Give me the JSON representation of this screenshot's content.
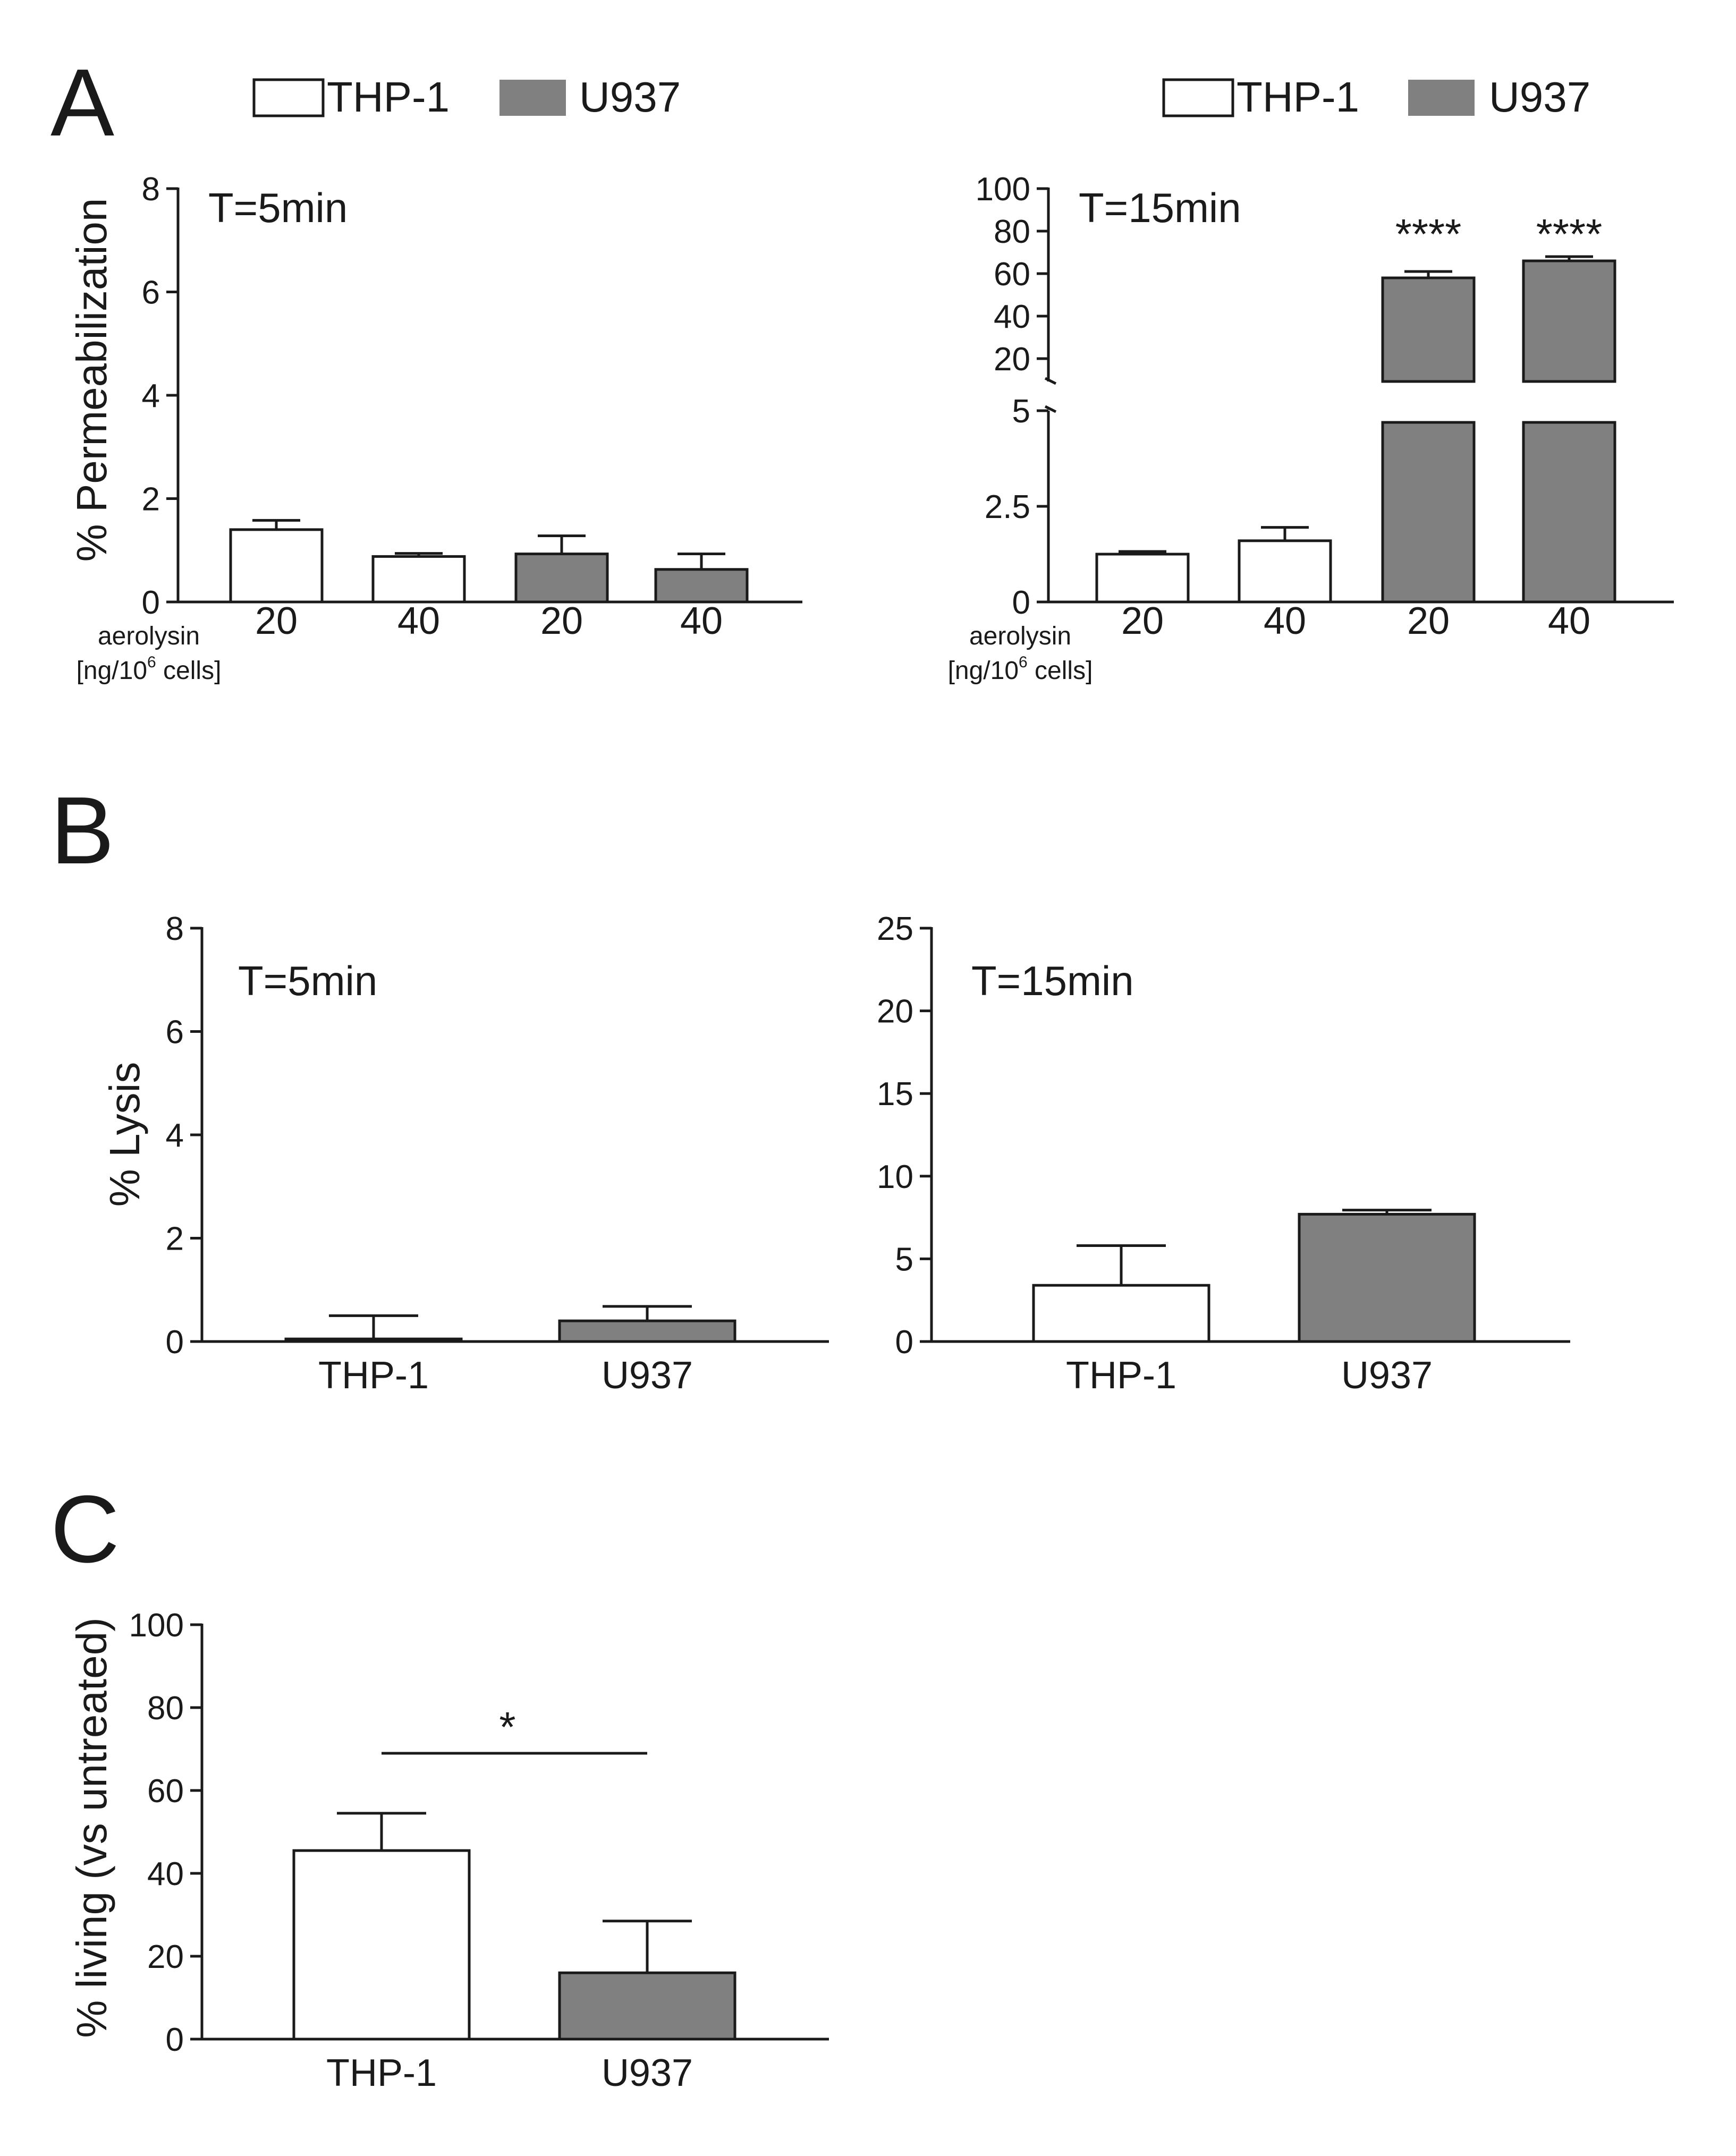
{
  "panels": {
    "A": "A",
    "B": "B",
    "C": "C"
  },
  "legend": {
    "thp1": "THP-1",
    "u937": "U937"
  },
  "colors": {
    "thp1_fill": "#ffffff",
    "u937_fill": "#808080",
    "stroke": "#1a1a1a"
  },
  "x_axis_caption": {
    "line1": "aerolysin",
    "line2_prefix": "[ng/10",
    "line2_sup": "6",
    "line2_suffix": " cells]"
  },
  "chart_data": [
    {
      "id": "A-5min",
      "type": "bar",
      "title": "T=5min",
      "ylabel": "% Permeabilization",
      "ylim": [
        0,
        8
      ],
      "yticks": [
        0,
        2,
        4,
        6,
        8
      ],
      "categories": [
        "20",
        "40",
        "20",
        "40"
      ],
      "groups": [
        "THP-1",
        "THP-1",
        "U937",
        "U937"
      ],
      "values": [
        1.4,
        0.88,
        0.93,
        0.63
      ],
      "errors": [
        0.18,
        0.06,
        0.35,
        0.3
      ],
      "significance": [
        "",
        "",
        "",
        ""
      ]
    },
    {
      "id": "A-15min",
      "type": "bar",
      "title": "T=15min",
      "ylabel": "",
      "axis_break": {
        "lower": [
          0,
          5
        ],
        "upper": [
          10,
          100
        ]
      },
      "yticks_lower": [
        0,
        2.5,
        5
      ],
      "ytick_labels_lower": [
        "0",
        "2.5",
        "5"
      ],
      "yticks_upper": [
        20,
        40,
        60,
        80,
        100
      ],
      "categories": [
        "20",
        "40",
        "20",
        "40"
      ],
      "groups": [
        "THP-1",
        "THP-1",
        "U937",
        "U937"
      ],
      "values": [
        1.25,
        1.6,
        58,
        66
      ],
      "errors": [
        0.07,
        0.35,
        3,
        2
      ],
      "significance": [
        "",
        "",
        "****",
        "****"
      ]
    },
    {
      "id": "B-5min",
      "type": "bar",
      "title": "T=5min",
      "ylabel": "% Lysis",
      "ylim": [
        0,
        8
      ],
      "yticks": [
        0,
        2,
        4,
        6,
        8
      ],
      "categories": [
        "THP-1",
        "U937"
      ],
      "values": [
        0.05,
        0.4
      ],
      "errors": [
        0.45,
        0.28
      ]
    },
    {
      "id": "B-15min",
      "type": "bar",
      "title": "T=15min",
      "ylabel": "",
      "ylim": [
        0,
        25
      ],
      "yticks": [
        0,
        5,
        10,
        15,
        20,
        25
      ],
      "categories": [
        "THP-1",
        "U937"
      ],
      "values": [
        3.4,
        7.7
      ],
      "errors": [
        2.4,
        0.25
      ]
    },
    {
      "id": "C",
      "type": "bar",
      "title": "",
      "ylabel": "% living (vs untreated)",
      "ylim": [
        0,
        100
      ],
      "yticks": [
        0,
        20,
        40,
        60,
        80,
        100
      ],
      "categories": [
        "THP-1",
        "U937"
      ],
      "values": [
        45.5,
        16
      ],
      "errors": [
        9,
        12.5
      ],
      "comparison": {
        "from": "THP-1",
        "to": "U937",
        "label": "*"
      }
    }
  ]
}
